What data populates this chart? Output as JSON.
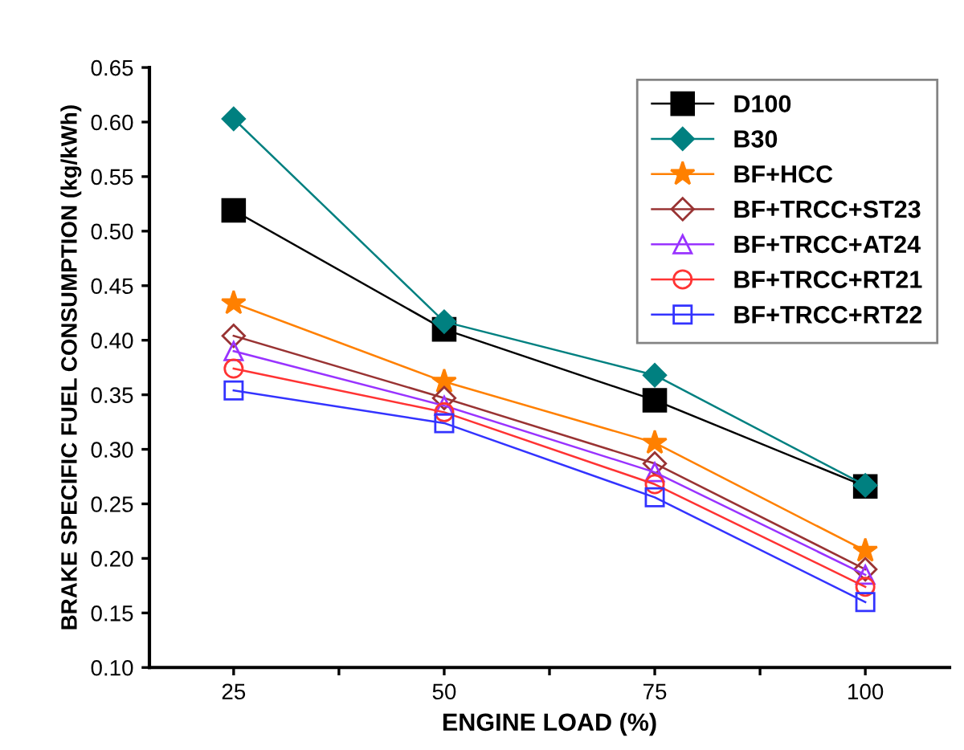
{
  "chart_data": {
    "type": "line",
    "xlabel": "ENGINE LOAD (%)",
    "ylabel": "BRAKE SPECIFIC FUEL CONSUMPTION (kg/kWh)",
    "x": [
      25,
      50,
      75,
      100
    ],
    "xlim": [
      15,
      110
    ],
    "xticks": [
      25,
      {
        "value": 37.5,
        "label": null
      },
      50,
      {
        "value": 62.5,
        "label": null
      },
      75,
      {
        "value": 87.5,
        "label": null
      },
      100
    ],
    "ylim": [
      0.1,
      0.65
    ],
    "yticks": [
      {
        "value": 0.1,
        "label": "0.10"
      },
      {
        "value": 0.15,
        "label": "0.15"
      },
      {
        "value": 0.2,
        "label": "0.20"
      },
      {
        "value": 0.25,
        "label": "0.25"
      },
      {
        "value": 0.3,
        "label": "0.30"
      },
      {
        "value": 0.35,
        "label": "0.35"
      },
      {
        "value": 0.4,
        "label": "0.40"
      },
      {
        "value": 0.45,
        "label": "0.45"
      },
      {
        "value": 0.5,
        "label": "0.50"
      },
      {
        "value": 0.55,
        "label": "0.55"
      },
      {
        "value": 0.6,
        "label": "0.60"
      },
      {
        "value": 0.65,
        "label": "0.65"
      }
    ],
    "grid": false,
    "legend": "top right",
    "series": [
      {
        "name": "D100",
        "color": "#000000",
        "marker": "square",
        "values": [
          0.519,
          0.41,
          0.345,
          0.266
        ]
      },
      {
        "name": "B30",
        "color": "#008080",
        "marker": "diamond",
        "values": [
          0.603,
          0.417,
          0.368,
          0.267
        ]
      },
      {
        "name": "BF+HCC",
        "color": "#ff8000",
        "marker": "star",
        "values": [
          0.434,
          0.362,
          0.306,
          0.207
        ]
      },
      {
        "name": "BF+TRCC+ST23",
        "color": "#993333",
        "marker": "diamond",
        "values": [
          0.404,
          0.347,
          0.287,
          0.19
        ]
      },
      {
        "name": "BF+TRCC+AT24",
        "color": "#9933ff",
        "marker": "triangle",
        "values": [
          0.39,
          0.34,
          0.279,
          0.185
        ]
      },
      {
        "name": "BF+TRCC+RT21",
        "color": "#ff3333",
        "marker": "circle",
        "values": [
          0.374,
          0.334,
          0.268,
          0.174
        ]
      },
      {
        "name": "BF+TRCC+RT22",
        "color": "#3333ff",
        "marker": "square",
        "values": [
          0.354,
          0.324,
          0.256,
          0.16
        ]
      }
    ]
  }
}
